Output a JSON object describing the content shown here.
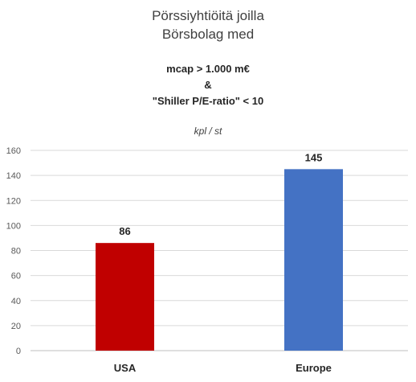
{
  "title_line1": "Pörssiyhtiöitä joilla",
  "title_line2": "Börsbolag med",
  "subtitle_line1": "mcap > 1.000 m€",
  "subtitle_line2": "&",
  "subtitle_line3": "\"Shiller P/E-ratio\" < 10",
  "unit_label": "kpl / st",
  "chart_data": {
    "type": "bar",
    "categories": [
      "USA",
      "Europe"
    ],
    "values": [
      86,
      145
    ],
    "colors": [
      "#C00000",
      "#4472C4"
    ],
    "ylim": [
      0,
      160
    ],
    "yticks": [
      0,
      20,
      40,
      60,
      80,
      100,
      120,
      140,
      160
    ],
    "grid": true,
    "data_labels": true
  }
}
